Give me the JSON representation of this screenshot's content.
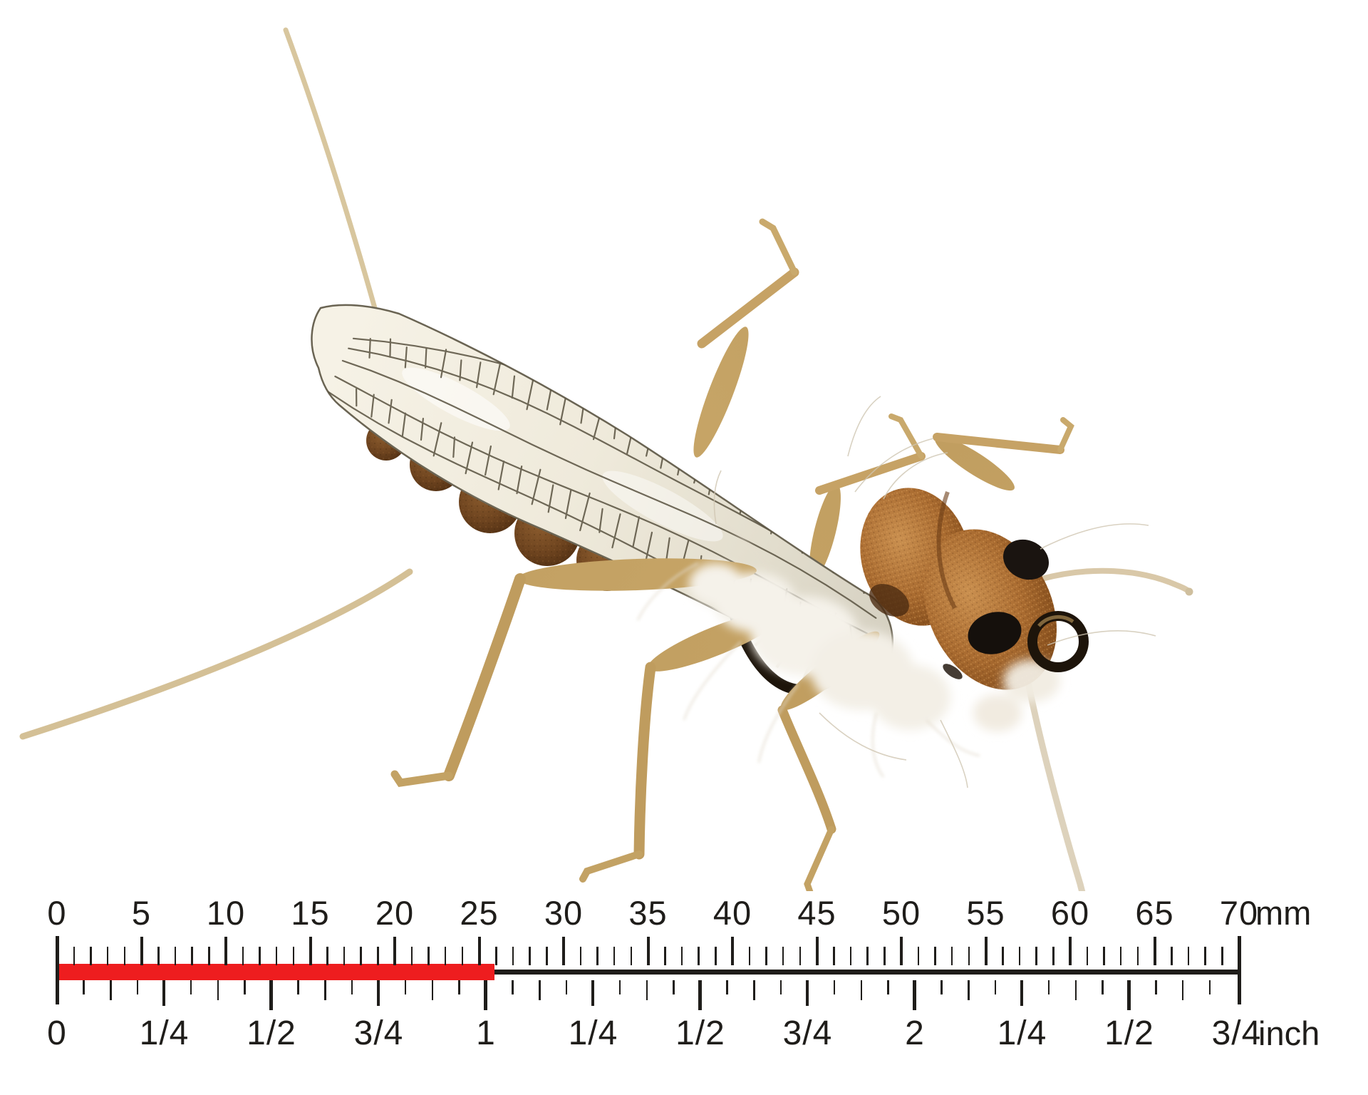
{
  "meta": {
    "background": "#ffffff"
  },
  "photo": {
    "subject": "Realistic stonefly dry-fly fishing lure photographed from above on white background",
    "features": [
      "netted cream wing",
      "speckled brown foam thorax and head",
      "two black head spots",
      "black hook eye ring",
      "six tan rubber legs",
      "two long tail filaments",
      "two antennae",
      "brown foam abdomen segments",
      "white yarn dubbing",
      "black hook bend"
    ]
  },
  "palette": {
    "leg_tan": "#c6a265",
    "leg_tan_dark": "#b2904f",
    "filament": "#d8c69e",
    "wing_cream": "#f4f0e3",
    "wing_rear": "#d6d1c2",
    "vein": "#57513f",
    "bump_brown": "#6e441f",
    "foam_orange": "#a96b30",
    "foam_light": "#c98f4f",
    "foam_dark": "#7b4617",
    "spot_black": "#1a1410",
    "hook_black": "#1d140a",
    "yarn_white": "#f5f2ea",
    "ruler_ink": "#1f1d1a",
    "ruler_red": "#ee1d1f"
  },
  "ruler": {
    "unit_top": "mm",
    "unit_bottom": "inch",
    "mm_labels": [
      {
        "text": "0",
        "mm": 0
      },
      {
        "text": "5",
        "mm": 5
      },
      {
        "text": "10",
        "mm": 10
      },
      {
        "text": "15",
        "mm": 15
      },
      {
        "text": "20",
        "mm": 20
      },
      {
        "text": "25",
        "mm": 25
      },
      {
        "text": "30",
        "mm": 30
      },
      {
        "text": "35",
        "mm": 35
      },
      {
        "text": "40",
        "mm": 40
      },
      {
        "text": "45",
        "mm": 45
      },
      {
        "text": "50",
        "mm": 50
      },
      {
        "text": "55",
        "mm": 55
      },
      {
        "text": "60",
        "mm": 60
      },
      {
        "text": "65",
        "mm": 65
      },
      {
        "text": "70",
        "mm": 70
      }
    ],
    "inch_labels": [
      {
        "text": "0",
        "in": 0
      },
      {
        "text": "1/4",
        "in": 0.25
      },
      {
        "text": "1/2",
        "in": 0.5
      },
      {
        "text": "3/4",
        "in": 0.75
      },
      {
        "text": "1",
        "in": 1
      },
      {
        "text": "1/4",
        "in": 1.25
      },
      {
        "text": "1/2",
        "in": 1.5
      },
      {
        "text": "3/4",
        "in": 1.75
      },
      {
        "text": "2",
        "in": 2
      },
      {
        "text": "1/4",
        "in": 2.25
      },
      {
        "text": "1/2",
        "in": 2.5
      },
      {
        "text": "3/4",
        "in": 2.75
      }
    ],
    "mm_max": 70,
    "red_bar": {
      "from_mm": 0,
      "to_mm": 26,
      "color": "#ee1d1f"
    },
    "colors": {
      "ink": "#1f1d1a"
    }
  }
}
